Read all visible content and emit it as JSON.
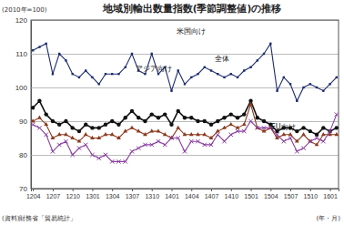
{
  "chart_data": {
    "type": "line",
    "title": "地域別輸出数量指数(季節調整値)の推移",
    "subtitle": "(2010年=100)",
    "source": "(資料)財務省「貿易統計」",
    "x_label": "(年・月)",
    "categories": [
      "1204",
      null,
      null,
      "1207",
      null,
      null,
      "1210",
      null,
      null,
      "1301",
      null,
      null,
      "1304",
      null,
      null,
      "1307",
      null,
      null,
      "1310",
      null,
      null,
      "1401",
      null,
      null,
      "1404",
      null,
      null,
      "1407",
      null,
      null,
      "1410",
      null,
      null,
      "1501",
      null,
      null,
      "1504",
      null,
      null,
      "1507",
      null,
      null,
      "1510",
      null,
      null,
      "1601",
      null
    ],
    "series": [
      {
        "name": "米国向け",
        "color": "#1f2d6e",
        "marker": "square",
        "values": [
          111,
          112,
          113,
          104,
          110,
          108,
          104,
          103,
          105,
          103,
          101,
          104,
          104,
          104,
          106,
          110,
          105,
          104,
          110,
          104,
          106,
          99,
          105,
          101,
          103,
          104,
          106,
          105,
          104,
          103,
          104,
          103,
          105,
          106,
          108,
          110,
          113,
          99,
          103,
          101,
          96,
          100,
          101,
          100,
          99,
          101,
          103
        ]
      },
      {
        "name": "全体",
        "color": "#111111",
        "marker": "circle",
        "values": [
          94,
          96,
          92,
          90,
          89,
          90,
          88,
          87,
          89,
          88,
          88,
          89,
          90,
          89,
          91,
          93,
          91,
          90,
          92,
          91,
          92,
          89,
          93,
          91,
          91,
          90,
          90,
          89,
          90,
          91,
          92,
          91,
          92,
          96,
          91,
          90,
          89,
          87,
          88,
          88,
          87,
          88,
          87,
          86,
          88,
          87,
          88
        ]
      },
      {
        "name": "アジア向け",
        "color": "#8b3a1e",
        "marker": "triangle",
        "values": [
          90,
          91,
          89,
          85,
          86,
          86,
          85,
          84,
          86,
          85,
          85,
          86,
          86,
          85,
          87,
          88,
          87,
          86,
          87,
          87,
          86,
          85,
          88,
          86,
          86,
          86,
          86,
          85,
          87,
          88,
          89,
          88,
          89,
          95,
          88,
          87,
          88,
          85,
          86,
          86,
          84,
          86,
          84,
          83,
          86,
          86,
          86
        ]
      },
      {
        "name": "EU向け",
        "color": "#8a3fa0",
        "marker": "x",
        "values": [
          89,
          88,
          86,
          81,
          83,
          84,
          80,
          82,
          83,
          80,
          79,
          80,
          78,
          78,
          78,
          81,
          82,
          83,
          83,
          84,
          83,
          85,
          85,
          81,
          84,
          84,
          83,
          83,
          86,
          84,
          86,
          87,
          87,
          90,
          88,
          88,
          88,
          86,
          84,
          85,
          81,
          82,
          84,
          85,
          84,
          87,
          92
        ]
      }
    ],
    "ylim": [
      70,
      120
    ],
    "yticks": [
      70,
      80,
      90,
      100,
      110,
      120
    ],
    "grid": true
  }
}
